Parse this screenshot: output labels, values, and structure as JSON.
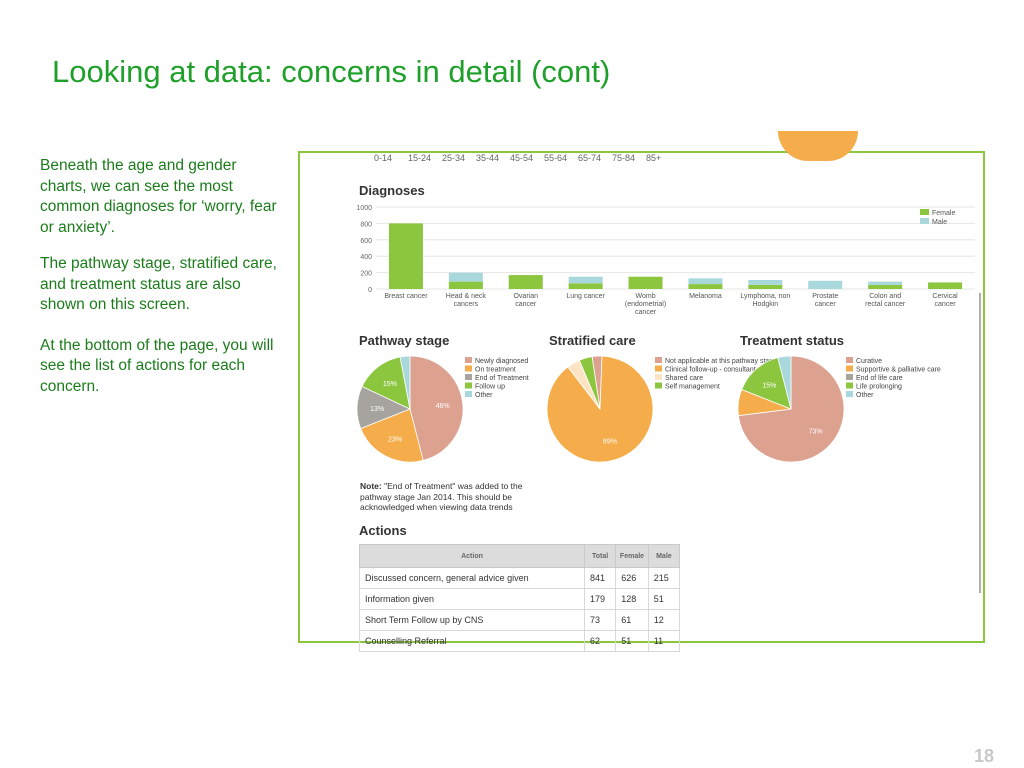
{
  "slide": {
    "title": "Looking at data: concerns in detail (cont)",
    "paragraphs": [
      "Beneath the age and gender charts, we can see the most common diagnoses for ‘worry, fear or anxiety’.",
      "The pathway stage, stratified care, and treatment status are also shown on this screen.",
      "At the bottom of the page, you will see the list of actions for each concern."
    ],
    "page_number": "18"
  },
  "colors": {
    "accent": "#1fa02a",
    "frame": "#8cc63f",
    "female": "#8cc63f",
    "male": "#a9d8dc"
  },
  "age_ticks": [
    "0-14",
    "15-24",
    "25-34",
    "35-44",
    "45-54",
    "55-64",
    "65-74",
    "75-84",
    "85+"
  ],
  "sections": {
    "diagnoses": "Diagnoses",
    "pathway": "Pathway stage",
    "stratified": "Stratified care",
    "treatment": "Treatment status",
    "actions": "Actions"
  },
  "note": {
    "label": "Note:",
    "text": " \"End of Treatment\" was added to the pathway stage Jan 2014. This should be acknowledged when viewing data trends"
  },
  "chart_data": [
    {
      "type": "bar",
      "title": "Diagnoses",
      "categories": [
        "Breast cancer",
        "Head & neck cancers",
        "Ovarian cancer",
        "Lung cancer",
        "Womb (endometrial) cancer",
        "Melanoma",
        "Lymphoma, non Hodgkin",
        "Prostate cancer",
        "Colon and rectal cancer",
        "Cervical cancer"
      ],
      "series": [
        {
          "name": "Female",
          "color": "#8cc63f",
          "values": [
            800,
            90,
            170,
            70,
            150,
            60,
            50,
            0,
            50,
            80
          ]
        },
        {
          "name": "Male",
          "color": "#a9d8dc",
          "values": [
            0,
            110,
            0,
            80,
            0,
            70,
            60,
            100,
            40,
            0
          ]
        }
      ],
      "ylim": [
        0,
        1000
      ],
      "yticks": [
        "0",
        "200",
        "400",
        "600",
        "800",
        "1000"
      ],
      "legend": "top-right"
    },
    {
      "type": "pie",
      "title": "Pathway stage",
      "labels": [
        "Newly diagnosed",
        "On treatment",
        "End of Treatment",
        "Follow up",
        "Other"
      ],
      "values": [
        46,
        23,
        13,
        15,
        3
      ],
      "value_labels": [
        "46%",
        "23%",
        "13%",
        "15%",
        ""
      ],
      "colors": [
        "#dca28f",
        "#f4ad4a",
        "#a7a39e",
        "#8cc63f",
        "#a9d8dc"
      ]
    },
    {
      "type": "pie",
      "title": "Stratified care",
      "labels": [
        "Not applicable at this pathway stage",
        "Clinical follow-up - consultant or nurse led",
        "Shared care",
        "Self management"
      ],
      "values": [
        3,
        89,
        4,
        4
      ],
      "value_labels": [
        "",
        "89%",
        "",
        ""
      ],
      "colors": [
        "#dca28f",
        "#f4ad4a",
        "#fce3c4",
        "#8cc63f"
      ]
    },
    {
      "type": "pie",
      "title": "Treatment status",
      "labels": [
        "Curative",
        "Supportive & palliative care",
        "End of life care",
        "Life prolonging",
        "Other"
      ],
      "values": [
        73,
        8,
        0,
        15,
        4
      ],
      "value_labels": [
        "73%",
        "",
        "",
        "15%",
        ""
      ],
      "colors": [
        "#dca28f",
        "#f4ad4a",
        "#a7a39e",
        "#8cc63f",
        "#a9d8dc"
      ]
    }
  ],
  "actions_table": {
    "headers": [
      "Action",
      "Total",
      "Female",
      "Male"
    ],
    "rows": [
      [
        "Discussed concern, general advice given",
        "841",
        "626",
        "215"
      ],
      [
        "Information given",
        "179",
        "128",
        "51"
      ],
      [
        "Short Term Follow up by CNS",
        "73",
        "61",
        "12"
      ],
      [
        "Counselling Referral",
        "62",
        "51",
        "11"
      ]
    ]
  }
}
